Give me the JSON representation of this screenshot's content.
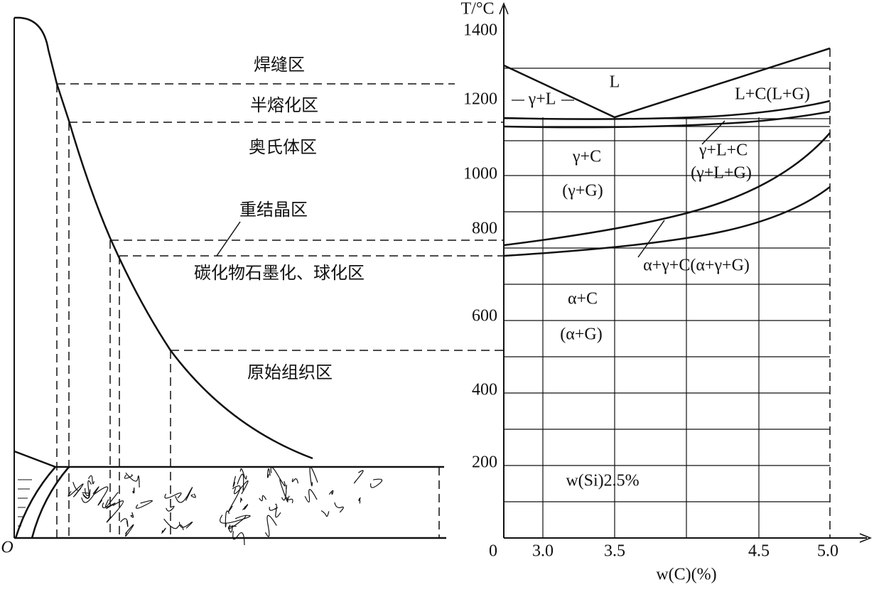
{
  "left_zones": [
    "焊缝区",
    "半熔化区",
    "奥氏体区",
    "重结晶区",
    "碳化物石墨化、球化区",
    "原始组织区"
  ],
  "origin_label": "O",
  "phase_diagram": {
    "y_axis_label": "T/°C",
    "y_tick_labels": [
      "1400",
      "1200",
      "1000",
      "800",
      "600",
      "400",
      "200"
    ],
    "origin_label": "0",
    "x_tick_labels": [
      "3.0",
      "3.5",
      "4.5",
      "5.0"
    ],
    "x_axis_label": "w(C)(%)",
    "regions": [
      "L",
      "γ+L",
      "L+C(L+G)",
      "γ+L+C",
      "(γ+L+G)",
      "γ+C",
      "(γ+G)",
      "α+γ+C(α+γ+G)",
      "α+C",
      "(α+G)"
    ],
    "note": "w(Si)2.5%"
  }
}
